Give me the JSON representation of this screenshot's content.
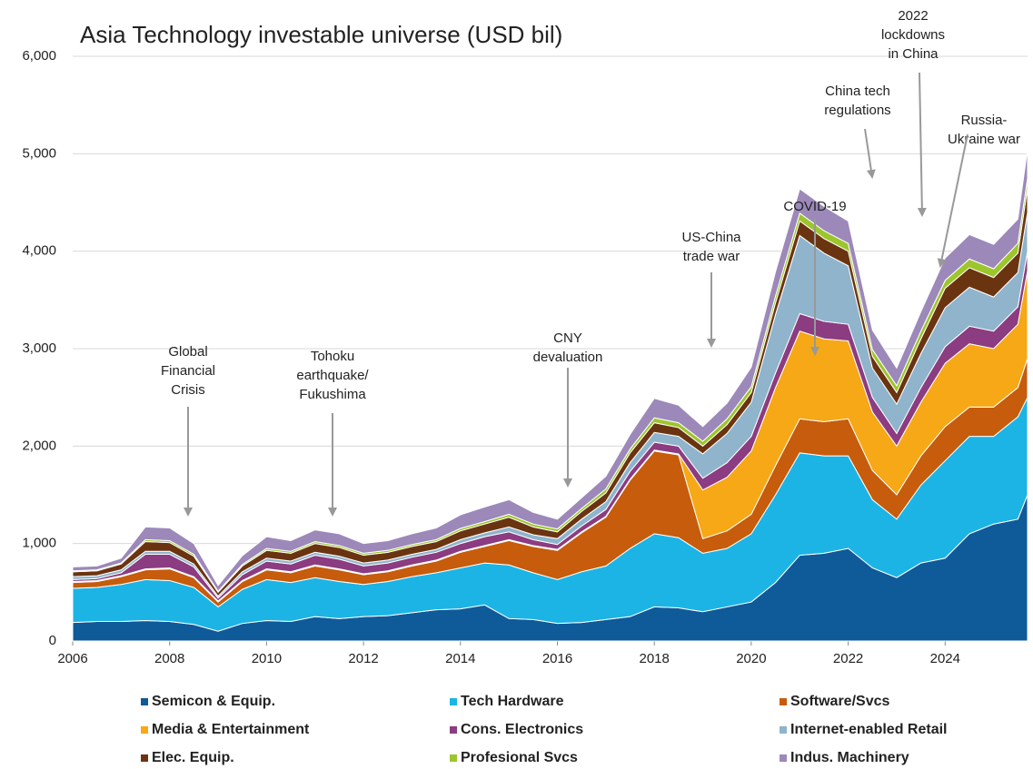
{
  "chart_data": {
    "type": "stacked-area",
    "title": "Asia Technology investable universe (USD bil)",
    "x": [
      2006,
      2006.5,
      2007,
      2007.5,
      2008,
      2008.5,
      2009,
      2009.5,
      2010,
      2010.5,
      2011,
      2011.5,
      2012,
      2012.5,
      2013,
      2013.5,
      2014,
      2014.5,
      2015,
      2015.5,
      2016,
      2016.5,
      2017,
      2017.5,
      2018,
      2018.5,
      2019,
      2019.5,
      2020,
      2020.5,
      2021,
      2021.5,
      2022,
      2022.5,
      2023,
      2023.5,
      2024,
      2024.5,
      2025,
      2025.5,
      2025.7
    ],
    "xlim": [
      2006,
      2025.7
    ],
    "xticks": [
      2006,
      2008,
      2010,
      2012,
      2014,
      2016,
      2018,
      2020,
      2022,
      2024
    ],
    "ylim": [
      0,
      6000
    ],
    "yticks": [
      0,
      {
        "value": 1000,
        "label": "1,000"
      },
      {
        "value": 2000,
        "label": "2,000"
      },
      {
        "value": 3000,
        "label": "3,000"
      },
      {
        "value": 4000,
        "label": "4,000"
      },
      {
        "value": 5000,
        "label": "5,000"
      },
      {
        "value": 6000,
        "label": "6,000"
      }
    ],
    "grid": true,
    "series": [
      {
        "name": "Semicon & Equip.",
        "color": "#0f5a99",
        "values": [
          190,
          200,
          200,
          210,
          200,
          170,
          100,
          180,
          210,
          200,
          250,
          230,
          250,
          260,
          290,
          320,
          330,
          370,
          230,
          220,
          180,
          190,
          220,
          250,
          350,
          340,
          300,
          350,
          400,
          600,
          880,
          900,
          950,
          750,
          650,
          800,
          850,
          1100,
          1200,
          1250,
          1500
        ]
      },
      {
        "name": "Tech Hardware",
        "color": "#1cb4e4",
        "values": [
          350,
          350,
          380,
          420,
          420,
          380,
          250,
          350,
          420,
          400,
          400,
          380,
          330,
          350,
          370,
          380,
          420,
          430,
          550,
          480,
          450,
          520,
          550,
          700,
          750,
          720,
          600,
          600,
          700,
          900,
          1050,
          1000,
          950,
          700,
          600,
          800,
          1000,
          1000,
          900,
          1050,
          1000
        ]
      },
      {
        "name": "Software/Svcs",
        "color": "#c65c0c",
        "values": [
          60,
          60,
          80,
          100,
          120,
          100,
          50,
          80,
          100,
          100,
          120,
          120,
          100,
          100,
          110,
          120,
          160,
          170,
          250,
          270,
          300,
          400,
          500,
          700,
          850,
          850,
          150,
          180,
          200,
          300,
          350,
          350,
          380,
          300,
          250,
          300,
          350,
          300,
          300,
          300,
          400
        ]
      },
      {
        "name": "Media & Entertainment",
        "color": "#f6a816",
        "values": [
          10,
          10,
          10,
          10,
          10,
          10,
          10,
          10,
          10,
          10,
          10,
          10,
          10,
          10,
          10,
          10,
          10,
          10,
          10,
          10,
          10,
          10,
          10,
          10,
          10,
          10,
          500,
          550,
          650,
          800,
          900,
          850,
          800,
          600,
          500,
          550,
          650,
          650,
          600,
          650,
          900
        ]
      },
      {
        "name": "Cons. Electronics",
        "color": "#8c3c80",
        "values": [
          20,
          20,
          30,
          150,
          140,
          100,
          30,
          60,
          80,
          80,
          100,
          100,
          80,
          80,
          80,
          80,
          80,
          90,
          80,
          60,
          50,
          60,
          70,
          80,
          80,
          80,
          120,
          150,
          150,
          150,
          180,
          180,
          170,
          150,
          130,
          150,
          170,
          180,
          180,
          180,
          200
        ]
      },
      {
        "name": "Internet-enabled Retail",
        "color": "#8fb4cc",
        "values": [
          30,
          30,
          30,
          30,
          30,
          30,
          20,
          30,
          30,
          30,
          30,
          30,
          30,
          30,
          30,
          30,
          40,
          40,
          50,
          50,
          60,
          70,
          80,
          90,
          100,
          100,
          250,
          300,
          350,
          600,
          800,
          700,
          600,
          300,
          300,
          350,
          400,
          400,
          350,
          350,
          400
        ]
      },
      {
        "name": "Elec. Equip.",
        "color": "#6b3411",
        "values": [
          50,
          50,
          60,
          100,
          90,
          80,
          40,
          60,
          80,
          80,
          90,
          90,
          80,
          80,
          80,
          80,
          90,
          90,
          100,
          80,
          70,
          80,
          90,
          100,
          100,
          90,
          80,
          90,
          100,
          120,
          150,
          150,
          150,
          120,
          120,
          150,
          200,
          200,
          200,
          200,
          250
        ]
      },
      {
        "name": "Profesional Svcs",
        "color": "#9dc52c",
        "values": [
          10,
          10,
          10,
          20,
          20,
          20,
          10,
          15,
          20,
          20,
          20,
          20,
          20,
          20,
          20,
          20,
          25,
          25,
          30,
          30,
          30,
          30,
          40,
          40,
          50,
          50,
          50,
          60,
          60,
          70,
          80,
          80,
          80,
          70,
          70,
          80,
          80,
          90,
          90,
          100,
          100
        ]
      },
      {
        "name": "Indus. Machinery",
        "color": "#9c88b9",
        "values": [
          40,
          40,
          50,
          130,
          130,
          110,
          60,
          90,
          120,
          110,
          120,
          120,
          100,
          100,
          110,
          120,
          140,
          150,
          150,
          120,
          100,
          110,
          130,
          150,
          200,
          180,
          150,
          160,
          200,
          250,
          250,
          250,
          230,
          200,
          180,
          200,
          230,
          250,
          250,
          250,
          300
        ]
      }
    ],
    "annotations": [
      [
        "Global",
        "Financial",
        "Crisis"
      ],
      [
        "Tohoku",
        "earthquake/",
        "Fukushima"
      ],
      [
        "CNY",
        "devaluation"
      ],
      [
        "US-China",
        "trade war"
      ],
      [
        "COVID-19"
      ],
      [
        "China tech",
        "regulations"
      ],
      [
        "2022",
        "lockdowns",
        "in China"
      ],
      [
        "Russia-",
        "Ukraine war"
      ]
    ]
  }
}
